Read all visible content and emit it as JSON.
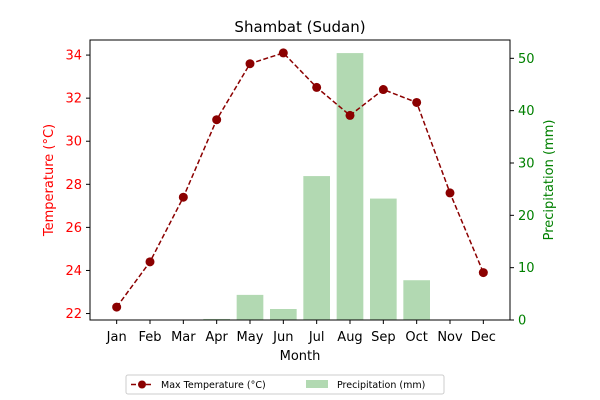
{
  "chart_data": {
    "type": "bar+line",
    "title": "Shambat (Sudan)",
    "xlabel": "Month",
    "ylabel_left": "Temperature (°C)",
    "ylabel_right": "Precipitation (mm)",
    "categories": [
      "Jan",
      "Feb",
      "Mar",
      "Apr",
      "May",
      "Jun",
      "Jul",
      "Aug",
      "Sep",
      "Oct",
      "Nov",
      "Dec"
    ],
    "y_left_lim": [
      21.7,
      34.7
    ],
    "y_left_ticks": [
      22,
      24,
      26,
      28,
      30,
      32,
      34
    ],
    "y_right_lim": [
      0,
      53.5
    ],
    "y_right_ticks": [
      0,
      10,
      20,
      30,
      40,
      50
    ],
    "series": [
      {
        "name": "Max Temperature (°C)",
        "kind": "line",
        "axis": "left",
        "color": "#8b0000",
        "values": [
          22.3,
          24.4,
          27.4,
          31.0,
          33.6,
          34.1,
          32.5,
          31.2,
          32.4,
          31.8,
          27.6,
          23.9
        ]
      },
      {
        "name": "Precipitation (mm)",
        "kind": "bar",
        "axis": "right",
        "color": "#b2d9b2",
        "values": [
          0,
          0,
          0,
          0.2,
          4.8,
          2.1,
          27.5,
          51.0,
          23.2,
          7.6,
          0,
          0
        ]
      }
    ],
    "left_axis_color": "#ff0000",
    "right_axis_color": "#008000",
    "legend_position": "bottom-center"
  }
}
